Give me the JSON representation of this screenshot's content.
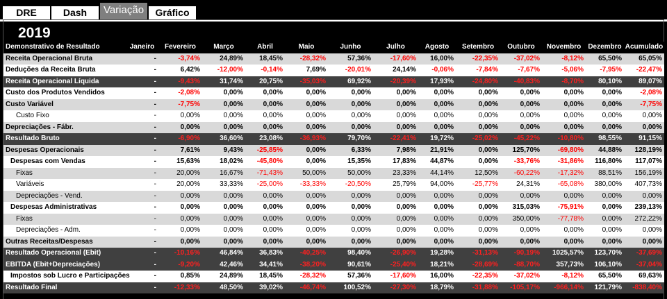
{
  "tabs": [
    {
      "label": "DRE",
      "active": false
    },
    {
      "label": "Dash",
      "active": false
    },
    {
      "label": "Variação",
      "active": true
    },
    {
      "label": "Gráfico",
      "active": false
    }
  ],
  "year": "2019",
  "table": {
    "columns": [
      "Demonstrativo de Resultado",
      "Janeiro",
      "Fevereiro",
      "Março",
      "Abril",
      "Maio",
      "Junho",
      "Julho",
      "Agosto",
      "Setembro",
      "Outubro",
      "Novembro",
      "Dezembro",
      "Acumulado"
    ],
    "rows": [
      {
        "label": "Receita Operacional Bruta",
        "style": "gray",
        "bold": true,
        "indent": 0,
        "values": [
          "-",
          "-3,74%",
          "24,89%",
          "18,45%",
          "-28,32%",
          "57,36%",
          "-17,60%",
          "16,00%",
          "-22,35%",
          "-37,02%",
          "-8,12%",
          "65,50%",
          "65,05%"
        ]
      },
      {
        "label": "Deduções da Receita Bruta",
        "style": "white",
        "bold": true,
        "indent": 0,
        "values": [
          "-",
          "6,42%",
          "-12,00%",
          "-0,14%",
          "7,69%",
          "-20,01%",
          "24,14%",
          "-0,06%",
          "-7,84%",
          "-7,67%",
          "-5,06%",
          "-7,95%",
          "-22,47%"
        ]
      },
      {
        "label": "Receita Operacional Líquida",
        "style": "dark",
        "bold": true,
        "indent": 0,
        "values": [
          "-",
          "-9,43%",
          "31,74%",
          "20,75%",
          "-35,03%",
          "69,92%",
          "-20,39%",
          "17,93%",
          "-24,80%",
          "-40,83%",
          "-8,70%",
          "80,10%",
          "89,07%"
        ]
      },
      {
        "label": "Custo dos Produtos Vendidos",
        "style": "white",
        "bold": true,
        "indent": 0,
        "values": [
          "-",
          "-2,08%",
          "0,00%",
          "0,00%",
          "0,00%",
          "0,00%",
          "0,00%",
          "0,00%",
          "0,00%",
          "0,00%",
          "0,00%",
          "0,00%",
          "-2,08%"
        ]
      },
      {
        "label": "Custo Variável",
        "style": "gray",
        "bold": true,
        "indent": 0,
        "values": [
          "-",
          "-7,75%",
          "0,00%",
          "0,00%",
          "0,00%",
          "0,00%",
          "0,00%",
          "0,00%",
          "0,00%",
          "0,00%",
          "0,00%",
          "0,00%",
          "-7,75%"
        ]
      },
      {
        "label": "Custo Fixo",
        "style": "white",
        "bold": false,
        "indent": 2,
        "values": [
          "-",
          "0,00%",
          "0,00%",
          "0,00%",
          "0,00%",
          "0,00%",
          "0,00%",
          "0,00%",
          "0,00%",
          "0,00%",
          "0,00%",
          "0,00%",
          "0,00%"
        ]
      },
      {
        "label": "Depreciações - Fábr.",
        "style": "gray",
        "bold": true,
        "indent": 0,
        "values": [
          "-",
          "0,00%",
          "0,00%",
          "0,00%",
          "0,00%",
          "0,00%",
          "0,00%",
          "0,00%",
          "0,00%",
          "0,00%",
          "0,00%",
          "0,00%",
          "0,00%"
        ]
      },
      {
        "label": "Resultado Bruto",
        "style": "dark",
        "bold": true,
        "indent": 0,
        "values": [
          "-",
          "-6,90%",
          "36,60%",
          "23,08%",
          "-36,93%",
          "79,70%",
          "-22,41%",
          "19,72%",
          "-25,02%",
          "-45,22%",
          "-10,80%",
          "98,55%",
          "91,15%"
        ]
      },
      {
        "label": "Despesas Operacionais",
        "style": "gray",
        "bold": true,
        "indent": 0,
        "values": [
          "-",
          "7,61%",
          "9,43%",
          "-25,85%",
          "0,00%",
          "6,33%",
          "7,98%",
          "21,91%",
          "0,00%",
          "125,70%",
          "-69,80%",
          "44,88%",
          "128,19%"
        ]
      },
      {
        "label": "Despesas com Vendas",
        "style": "white",
        "bold": true,
        "indent": 1,
        "values": [
          "-",
          "15,63%",
          "18,02%",
          "-45,80%",
          "0,00%",
          "15,35%",
          "17,83%",
          "44,87%",
          "0,00%",
          "-33,76%",
          "-31,86%",
          "116,80%",
          "117,07%"
        ]
      },
      {
        "label": "Fixas",
        "style": "gray",
        "bold": false,
        "indent": 2,
        "values": [
          "-",
          "20,00%",
          "16,67%",
          "-71,43%",
          "50,00%",
          "50,00%",
          "23,33%",
          "44,14%",
          "12,50%",
          "-60,22%",
          "-17,32%",
          "88,51%",
          "156,19%"
        ]
      },
      {
        "label": "Variáveis",
        "style": "white",
        "bold": false,
        "indent": 2,
        "values": [
          "-",
          "20,00%",
          "33,33%",
          "-25,00%",
          "-33,33%",
          "-20,50%",
          "25,79%",
          "94,00%",
          "-25,77%",
          "24,31%",
          "-65,08%",
          "380,00%",
          "407,73%"
        ]
      },
      {
        "label": "Depreciações - Vend.",
        "style": "gray",
        "bold": false,
        "indent": 2,
        "values": [
          "-",
          "0,00%",
          "0,00%",
          "0,00%",
          "0,00%",
          "0,00%",
          "0,00%",
          "0,00%",
          "0,00%",
          "0,00%",
          "0,00%",
          "0,00%",
          "0,00%"
        ]
      },
      {
        "label": "Despesas Administrativas",
        "style": "white",
        "bold": true,
        "indent": 1,
        "values": [
          "-",
          "0,00%",
          "0,00%",
          "0,00%",
          "0,00%",
          "0,00%",
          "0,00%",
          "0,00%",
          "0,00%",
          "315,03%",
          "-75,91%",
          "0,00%",
          "239,13%"
        ]
      },
      {
        "label": "Fixas",
        "style": "gray",
        "bold": false,
        "indent": 2,
        "values": [
          "-",
          "0,00%",
          "0,00%",
          "0,00%",
          "0,00%",
          "0,00%",
          "0,00%",
          "0,00%",
          "0,00%",
          "350,00%",
          "-77,78%",
          "0,00%",
          "272,22%"
        ]
      },
      {
        "label": "Depreciações - Adm.",
        "style": "white",
        "bold": false,
        "indent": 2,
        "values": [
          "-",
          "0,00%",
          "0,00%",
          "0,00%",
          "0,00%",
          "0,00%",
          "0,00%",
          "0,00%",
          "0,00%",
          "0,00%",
          "0,00%",
          "0,00%",
          "0,00%"
        ]
      },
      {
        "label": "Outras Receitas/Despesas",
        "style": "gray",
        "bold": true,
        "indent": 0,
        "values": [
          "-",
          "0,00%",
          "0,00%",
          "0,00%",
          "0,00%",
          "0,00%",
          "0,00%",
          "0,00%",
          "0,00%",
          "0,00%",
          "0,00%",
          "0,00%",
          "0,00%"
        ]
      },
      {
        "label": "Resultado Operacional (Ebit)",
        "style": "dark",
        "bold": true,
        "indent": 0,
        "values": [
          "-",
          "-10,16%",
          "46,84%",
          "36,83%",
          "-40,25%",
          "98,40%",
          "-26,90%",
          "19,28%",
          "-31,13%",
          "-90,19%",
          "1025,57%",
          "123,70%",
          "-37,69%"
        ]
      },
      {
        "label": "EBITDA (Ebit+Depreciações)",
        "style": "dark",
        "bold": true,
        "indent": 0,
        "values": [
          "-",
          "-9,20%",
          "42,46%",
          "34,41%",
          "-38,20%",
          "90,61%",
          "-25,40%",
          "18,21%",
          "-28,69%",
          "-88,70%",
          "357,73%",
          "106,10%",
          "-37,04%"
        ]
      },
      {
        "label": "Impostos sob Lucro e Participações",
        "style": "white",
        "bold": true,
        "indent": 1,
        "values": [
          "-",
          "0,85%",
          "24,89%",
          "18,45%",
          "-28,32%",
          "57,36%",
          "-17,60%",
          "16,00%",
          "-22,35%",
          "-37,02%",
          "-8,12%",
          "65,50%",
          "69,63%"
        ]
      },
      {
        "label": "Resultado Final",
        "style": "dark",
        "bold": true,
        "indent": 0,
        "values": [
          "-",
          "-12,33%",
          "48,50%",
          "39,02%",
          "-46,74%",
          "100,52%",
          "-27,30%",
          "18,79%",
          "-31,88%",
          "-105,17%",
          "-966,14%",
          "121,79%",
          "-838,40%"
        ]
      }
    ]
  }
}
